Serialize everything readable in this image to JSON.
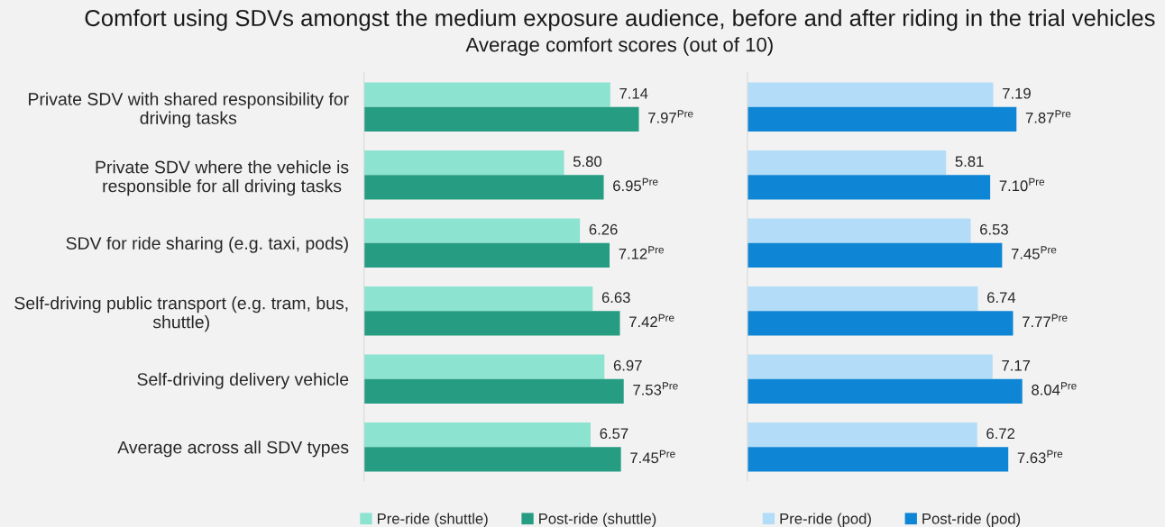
{
  "chart_data": [
    {
      "type": "bar",
      "orientation": "horizontal",
      "title": "Comfort using SDVs amongst the medium exposure audience, before and after riding in the trial vehicles",
      "subtitle": "Average comfort scores (out of 10)",
      "categories": [
        "Private SDV with shared responsibility for\ndriving tasks",
        "Private SDV where the vehicle is\nresponsible for all driving tasks",
        "SDV for ride sharing (e.g. taxi, pods)",
        "Self-driving public transport (e.g. tram, bus,\nshuttle)",
        "Self-driving delivery vehicle",
        "Average across all SDV types"
      ],
      "series": [
        {
          "name": "Pre-ride (shuttle)",
          "color": "#8be3d0",
          "values": [
            7.14,
            5.8,
            6.26,
            6.63,
            6.97,
            6.57
          ],
          "value_labels": [
            "7.14",
            "5.80",
            "6.26",
            "6.63",
            "6.97",
            "6.57"
          ]
        },
        {
          "name": "Post-ride (shuttle)",
          "color": "#269d82",
          "values": [
            7.97,
            6.95,
            7.12,
            7.42,
            7.53,
            7.45
          ],
          "value_labels": [
            "7.97$^{Pre}$",
            "6.95$^{Pre}$",
            "7.12$^{Pre}$",
            "7.42$^{Pre}$",
            "7.53$^{Pre}$",
            "7.45$^{Pre}$"
          ]
        }
      ],
      "legend": "bottom",
      "tick_labels": "y",
      "grid": false
    },
    {
      "type": "bar",
      "orientation": "horizontal",
      "categories": [
        null,
        null,
        null,
        null,
        null,
        null
      ],
      "series": [
        {
          "name": "Pre-ride (pod)",
          "color": "#b3dcf8",
          "values": [
            7.19,
            5.81,
            6.53,
            6.74,
            7.17,
            6.72
          ],
          "value_labels": [
            "7.19",
            "5.81",
            "6.53",
            "6.74",
            "7.17",
            "6.72"
          ]
        },
        {
          "name": "Post-ride (pod)",
          "color": "#0f86d5",
          "values": [
            7.87,
            7.1,
            7.45,
            7.77,
            8.04,
            7.63
          ],
          "value_labels": [
            "7.87$^{Pre}$",
            "7.10$^{Pre}$",
            "7.45$^{Pre}$",
            "7.77$^{Pre}$",
            "8.04$^{Pre}$",
            "7.63$^{Pre}$"
          ]
        }
      ],
      "legend": "bottom",
      "grid": false
    }
  ]
}
